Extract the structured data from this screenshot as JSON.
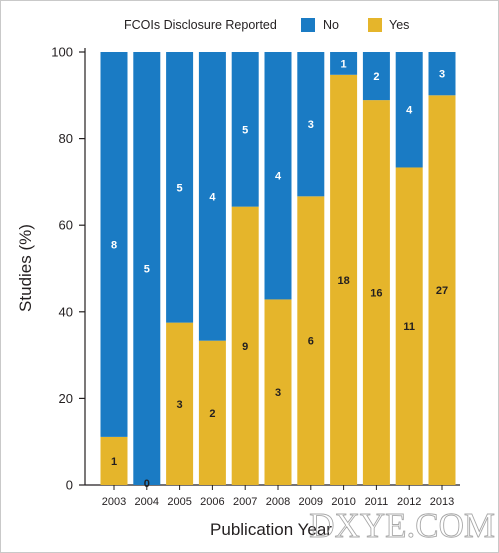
{
  "chart_data": {
    "type": "bar",
    "stacked": true,
    "percent_scale": true,
    "xlabel": "Publication Year",
    "ylabel": "Studies (%)",
    "ylim": [
      0,
      100
    ],
    "yticks": [
      "0",
      "20",
      "40",
      "60",
      "80",
      "100"
    ],
    "grid": false,
    "legend": {
      "title": "FCOIs Disclosure Reported",
      "placement": "top",
      "entries": [
        "No",
        "Yes"
      ]
    },
    "categories": [
      "2003",
      "2004",
      "2005",
      "2006",
      "2007",
      "2008",
      "2009",
      "2010",
      "2011",
      "2012",
      "2013"
    ],
    "series": [
      {
        "name": "Yes",
        "values": [
          1,
          0,
          3,
          2,
          9,
          3,
          6,
          18,
          16,
          11,
          27
        ],
        "color": "#e5b52b"
      },
      {
        "name": "No",
        "values": [
          8,
          5,
          5,
          4,
          5,
          4,
          3,
          1,
          2,
          4,
          3
        ],
        "color": "#1a7bc4"
      }
    ],
    "watermark": "DXYE.COM"
  }
}
